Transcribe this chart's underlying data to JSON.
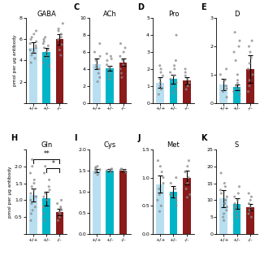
{
  "panels": [
    {
      "label": "",
      "title": "GABA",
      "show_ylabel": true,
      "ylabel": "pmol per μg antibody",
      "ylim": [
        0,
        8
      ],
      "yticks": [
        0,
        2,
        4,
        6,
        8
      ],
      "yticklabels": [
        "",
        "2",
        "4",
        "6",
        "8"
      ],
      "bars": [
        5.2,
        4.8,
        6.0
      ],
      "errors": [
        0.5,
        0.4,
        0.5
      ],
      "colors": [
        "#b8dff0",
        "#00b5c8",
        "#8b1a1a"
      ],
      "dots": [
        [
          3.8,
          4.2,
          4.5,
          4.8,
          5.0,
          5.2,
          5.4,
          5.6,
          5.8,
          6.0,
          6.2,
          6.5,
          6.8
        ],
        [
          3.5,
          3.8,
          4.2,
          4.5,
          4.8,
          5.0,
          5.2,
          5.4,
          5.6,
          5.8,
          6.0,
          6.2
        ],
        [
          4.5,
          5.0,
          5.5,
          6.0,
          6.2,
          6.5,
          6.8,
          7.0,
          7.5
        ]
      ]
    },
    {
      "label": "C",
      "title": "ACh",
      "show_ylabel": false,
      "ylabel": "pmol per μg antibody",
      "ylim": [
        0,
        10
      ],
      "yticks": [
        0,
        2,
        4,
        6,
        8,
        10
      ],
      "yticklabels": [
        "0",
        "2",
        "4",
        "6",
        "8",
        "10"
      ],
      "bars": [
        4.6,
        4.1,
        4.8
      ],
      "errors": [
        0.6,
        0.3,
        0.4
      ],
      "colors": [
        "#b8dff0",
        "#00b5c8",
        "#8b1a1a"
      ],
      "dots": [
        [
          2.5,
          3.0,
          3.5,
          4.0,
          4.2,
          4.5,
          5.0,
          5.5,
          6.0,
          7.0
        ],
        [
          2.8,
          3.2,
          3.5,
          4.0,
          4.2,
          4.5,
          5.0,
          5.2,
          5.5,
          5.8
        ],
        [
          3.0,
          3.5,
          4.0,
          4.5,
          5.0,
          5.5,
          6.0,
          6.5,
          7.0
        ]
      ]
    },
    {
      "label": "D",
      "title": "Pro",
      "show_ylabel": false,
      "ylabel": "pmol per μg antibody",
      "ylim": [
        0,
        5
      ],
      "yticks": [
        0,
        1,
        2,
        3,
        4,
        5
      ],
      "yticklabels": [
        "0",
        "1",
        "2",
        "3",
        "4",
        "5"
      ],
      "bars": [
        1.2,
        1.4,
        1.3
      ],
      "errors": [
        0.3,
        0.25,
        0.2
      ],
      "colors": [
        "#b8dff0",
        "#00b5c8",
        "#8b1a1a"
      ],
      "dots": [
        [
          0.5,
          0.8,
          1.0,
          1.2,
          1.4,
          1.6,
          1.8,
          2.0,
          2.2
        ],
        [
          0.6,
          0.8,
          1.0,
          1.2,
          1.4,
          1.6,
          1.8,
          2.0,
          2.2,
          2.5,
          4.0
        ],
        [
          0.8,
          1.0,
          1.2,
          1.4,
          1.6,
          1.8,
          2.0
        ]
      ]
    },
    {
      "label": "E",
      "title": "D",
      "show_ylabel": false,
      "ylabel": "pmol per μg antibody",
      "ylim": [
        0,
        3
      ],
      "yticks": [
        0,
        1,
        2,
        3
      ],
      "yticklabels": [
        "0",
        "1",
        "2",
        "3"
      ],
      "bars": [
        0.65,
        0.55,
        1.2
      ],
      "errors": [
        0.2,
        0.1,
        0.5
      ],
      "colors": [
        "#b8dff0",
        "#00b5c8",
        "#8b1a1a"
      ],
      "dots": [
        [
          0.2,
          0.4,
          0.5,
          0.6,
          0.8,
          1.0,
          1.2
        ],
        [
          0.3,
          0.4,
          0.5,
          0.6,
          0.7,
          0.8,
          1.0,
          1.5,
          1.8,
          2.0,
          2.2,
          2.5
        ],
        [
          0.4,
          0.6,
          0.8,
          1.0,
          1.2,
          1.4,
          1.6,
          1.8,
          2.0,
          2.2
        ]
      ]
    },
    {
      "label": "H",
      "title": "Gln",
      "show_ylabel": true,
      "ylabel": "pmol per μg antibody",
      "ylim": [
        0,
        2.5
      ],
      "yticks": [
        0,
        0.5,
        1.0,
        1.5,
        2.0,
        2.5
      ],
      "yticklabels": [
        "",
        "0.5",
        "1.0",
        "1.5",
        "2.0",
        ""
      ],
      "bars": [
        1.15,
        1.05,
        0.65
      ],
      "errors": [
        0.2,
        0.2,
        0.1
      ],
      "colors": [
        "#b8dff0",
        "#00b5c8",
        "#8b1a1a"
      ],
      "dots": [
        [
          0.4,
          0.6,
          0.7,
          0.8,
          0.9,
          1.0,
          1.1,
          1.2,
          1.3,
          1.4,
          1.5,
          1.6,
          1.8,
          2.0,
          2.2
        ],
        [
          0.4,
          0.6,
          0.8,
          1.0,
          1.1,
          1.2,
          1.3,
          1.4,
          1.6,
          1.8,
          2.0
        ],
        [
          0.4,
          0.5,
          0.6,
          0.65,
          0.7,
          0.75,
          0.8,
          0.9,
          1.0
        ]
      ],
      "significance": true
    },
    {
      "label": "I",
      "title": "Cys",
      "show_ylabel": false,
      "ylabel": "pmol per μg antibody",
      "ylim": [
        0.0,
        2.0
      ],
      "yticks": [
        0.0,
        0.5,
        1.0,
        1.5,
        2.0
      ],
      "yticklabels": [
        "0.0",
        "0.5",
        "1.0",
        "1.5",
        "2.0"
      ],
      "bars": [
        1.5,
        1.5,
        1.5
      ],
      "errors": [
        0.04,
        0.03,
        0.03
      ],
      "colors": [
        "#b8dff0",
        "#00b5c8",
        "#8b1a1a"
      ],
      "dots": [
        [
          1.4,
          1.45,
          1.5,
          1.52,
          1.55,
          1.58,
          1.6
        ],
        [
          1.46,
          1.5,
          1.52,
          1.54
        ],
        [
          1.46,
          1.5,
          1.52,
          1.54
        ]
      ]
    },
    {
      "label": "J",
      "title": "Met",
      "show_ylabel": false,
      "ylabel": "pmol per μg antibody",
      "ylim": [
        0.0,
        1.5
      ],
      "yticks": [
        0.0,
        0.5,
        1.0,
        1.5
      ],
      "yticklabels": [
        "0.0",
        "0.5",
        "1.0",
        "1.5"
      ],
      "bars": [
        0.88,
        0.75,
        1.0
      ],
      "errors": [
        0.15,
        0.1,
        0.12
      ],
      "colors": [
        "#b8dff0",
        "#00b5c8",
        "#8b1a1a"
      ],
      "dots": [
        [
          0.4,
          0.5,
          0.6,
          0.7,
          0.8,
          0.9,
          1.0,
          1.1,
          1.2,
          1.3
        ],
        [
          0.5,
          0.6,
          0.65,
          0.7,
          0.8,
          0.9,
          1.0
        ],
        [
          0.65,
          0.7,
          0.8,
          0.9,
          1.0,
          1.1,
          1.2,
          1.3
        ]
      ]
    },
    {
      "label": "K",
      "title": "S",
      "show_ylabel": false,
      "ylabel": "pmol per μg antibody",
      "ylim": [
        0,
        25
      ],
      "yticks": [
        0,
        5,
        10,
        15,
        20,
        25
      ],
      "yticklabels": [
        "0",
        "5",
        "10",
        "15",
        "20",
        "25"
      ],
      "bars": [
        10.5,
        9.0,
        8.0
      ],
      "errors": [
        2.5,
        1.5,
        1.0
      ],
      "colors": [
        "#b8dff0",
        "#00b5c8",
        "#8b1a1a"
      ],
      "dots": [
        [
          4,
          5,
          6,
          7,
          8,
          9,
          10,
          11,
          12,
          13,
          14,
          15,
          18
        ],
        [
          5,
          6,
          7,
          8,
          9,
          10,
          11,
          12,
          14
        ],
        [
          5,
          6,
          7,
          8,
          9,
          10,
          11,
          12
        ]
      ]
    }
  ],
  "xtick_labels": [
    "+/+",
    "+/-",
    "-/-"
  ],
  "bar_width": 0.6,
  "dot_alpha": 0.75,
  "dot_size": 5,
  "dot_color": "#888888",
  "background_color": "#ffffff"
}
